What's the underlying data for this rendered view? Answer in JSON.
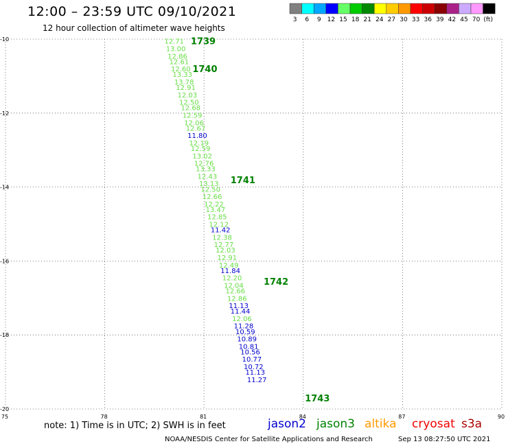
{
  "header": {
    "title": "12:00 – 23:59 UTC 09/10/2021",
    "subtitle": "12 hour collection of altimeter wave heights"
  },
  "legend": {
    "unit": "(ft)",
    "items": [
      {
        "label": "3",
        "color": "#808080"
      },
      {
        "label": "6",
        "color": "#00ffff"
      },
      {
        "label": "9",
        "color": "#00a8ff"
      },
      {
        "label": "12",
        "color": "#0000ff"
      },
      {
        "label": "15",
        "color": "#66ff66"
      },
      {
        "label": "18",
        "color": "#00cc00"
      },
      {
        "label": "21",
        "color": "#008800"
      },
      {
        "label": "24",
        "color": "#ffff00"
      },
      {
        "label": "27",
        "color": "#ffcc00"
      },
      {
        "label": "30",
        "color": "#ff9900"
      },
      {
        "label": "33",
        "color": "#ff0000"
      },
      {
        "label": "36",
        "color": "#cc0000"
      },
      {
        "label": "39",
        "color": "#880000"
      },
      {
        "label": "42",
        "color": "#aa2288"
      },
      {
        "label": "45",
        "color": "#ccaaff"
      },
      {
        "label": "70",
        "color": "#ff99ff"
      },
      {
        "label": "",
        "color": "#000000"
      }
    ]
  },
  "footer": {
    "note": "note: 1) Time is in UTC; 2) SWH is in feet",
    "credit": "NOAA/NESDIS Center for Satellite Applications and Research",
    "generated": "Sep 13 08:27:50 UTC 2021"
  },
  "satellites": [
    {
      "name": "jason2",
      "color": "#0000cc"
    },
    {
      "name": "jason3",
      "color": "#008000"
    },
    {
      "name": "altika",
      "color": "#ff9900"
    },
    {
      "name": "cryosat",
      "color": "#ee0000"
    },
    {
      "name": "s3a",
      "color": "#aa0000"
    }
  ],
  "chart_data": {
    "type": "scatter",
    "xlim": [
      75,
      90
    ],
    "ylim": [
      -20,
      -10
    ],
    "xticks": [
      75,
      78,
      81,
      84,
      87,
      90
    ],
    "yticks": [
      -10,
      -12,
      -14,
      -16,
      -18,
      -20
    ],
    "xtick_labels": [
      "75",
      "78",
      "81",
      "84",
      "87",
      "90"
    ],
    "ytick_labels": [
      "-10",
      "-12",
      "-14",
      "-16",
      "-18",
      "-20"
    ],
    "grid": true,
    "pass_labels": [
      {
        "label": "1739",
        "x": 80.6,
        "y": -10.05
      },
      {
        "label": "1740",
        "x": 80.65,
        "y": -10.8
      },
      {
        "label": "1741",
        "x": 81.8,
        "y": -13.8
      },
      {
        "label": "1742",
        "x": 82.8,
        "y": -16.55
      },
      {
        "label": "1743",
        "x": 84.05,
        "y": -19.7
      }
    ],
    "points": [
      {
        "x": 79.8,
        "y": -10.05,
        "value": "12.71",
        "color": "#66dd44"
      },
      {
        "x": 79.85,
        "y": -10.25,
        "value": "13.00",
        "color": "#66dd44"
      },
      {
        "x": 79.9,
        "y": -10.45,
        "value": "12.86",
        "color": "#66dd44"
      },
      {
        "x": 79.95,
        "y": -10.6,
        "value": "12.61",
        "color": "#66dd44"
      },
      {
        "x": 80.0,
        "y": -10.8,
        "value": "12.60",
        "color": "#66dd44"
      },
      {
        "x": 80.05,
        "y": -10.95,
        "value": "13.33",
        "color": "#66dd44"
      },
      {
        "x": 80.1,
        "y": -11.15,
        "value": "13.78",
        "color": "#66dd44"
      },
      {
        "x": 80.15,
        "y": -11.3,
        "value": "12.91",
        "color": "#66dd44"
      },
      {
        "x": 80.2,
        "y": -11.5,
        "value": "12.03",
        "color": "#66dd44"
      },
      {
        "x": 80.25,
        "y": -11.7,
        "value": "12.50",
        "color": "#66dd44"
      },
      {
        "x": 80.3,
        "y": -11.85,
        "value": "12.68",
        "color": "#66dd44"
      },
      {
        "x": 80.35,
        "y": -12.05,
        "value": "12.59",
        "color": "#66dd44"
      },
      {
        "x": 80.4,
        "y": -12.25,
        "value": "12.06",
        "color": "#66dd44"
      },
      {
        "x": 80.45,
        "y": -12.4,
        "value": "12.67",
        "color": "#66dd44"
      },
      {
        "x": 80.5,
        "y": -12.6,
        "value": "11.80",
        "color": "#0000cc"
      },
      {
        "x": 80.55,
        "y": -12.8,
        "value": "12.19",
        "color": "#66dd44"
      },
      {
        "x": 80.6,
        "y": -12.95,
        "value": "12.59",
        "color": "#66dd44"
      },
      {
        "x": 80.65,
        "y": -13.15,
        "value": "13.02",
        "color": "#66dd44"
      },
      {
        "x": 80.7,
        "y": -13.35,
        "value": "12.76",
        "color": "#66dd44"
      },
      {
        "x": 80.75,
        "y": -13.5,
        "value": "13.33",
        "color": "#66dd44"
      },
      {
        "x": 80.8,
        "y": -13.7,
        "value": "12.43",
        "color": "#66dd44"
      },
      {
        "x": 80.85,
        "y": -13.9,
        "value": "13.13",
        "color": "#66dd44"
      },
      {
        "x": 80.9,
        "y": -14.05,
        "value": "12.50",
        "color": "#66dd44"
      },
      {
        "x": 80.95,
        "y": -14.25,
        "value": "12.66",
        "color": "#66dd44"
      },
      {
        "x": 81.0,
        "y": -14.45,
        "value": "12.22",
        "color": "#66dd44"
      },
      {
        "x": 81.05,
        "y": -14.6,
        "value": "13.47",
        "color": "#66dd44"
      },
      {
        "x": 81.1,
        "y": -14.8,
        "value": "12.85",
        "color": "#66dd44"
      },
      {
        "x": 81.15,
        "y": -15.0,
        "value": "12.12",
        "color": "#66dd44"
      },
      {
        "x": 81.2,
        "y": -15.15,
        "value": "11.42",
        "color": "#0000cc"
      },
      {
        "x": 81.25,
        "y": -15.35,
        "value": "12.38",
        "color": "#66dd44"
      },
      {
        "x": 81.3,
        "y": -15.55,
        "value": "12.77",
        "color": "#66dd44"
      },
      {
        "x": 81.35,
        "y": -15.7,
        "value": "12.03",
        "color": "#66dd44"
      },
      {
        "x": 81.4,
        "y": -15.9,
        "value": "12.91",
        "color": "#66dd44"
      },
      {
        "x": 81.45,
        "y": -16.1,
        "value": "12.49",
        "color": "#66dd44"
      },
      {
        "x": 81.5,
        "y": -16.25,
        "value": "11.84",
        "color": "#0000cc"
      },
      {
        "x": 81.55,
        "y": -16.45,
        "value": "12.20",
        "color": "#66dd44"
      },
      {
        "x": 81.6,
        "y": -16.65,
        "value": "12.04",
        "color": "#66dd44"
      },
      {
        "x": 81.65,
        "y": -16.8,
        "value": "12.66",
        "color": "#66dd44"
      },
      {
        "x": 81.7,
        "y": -17.0,
        "value": "12.86",
        "color": "#66dd44"
      },
      {
        "x": 81.75,
        "y": -17.2,
        "value": "11.13",
        "color": "#0000cc"
      },
      {
        "x": 81.8,
        "y": -17.35,
        "value": "11.44",
        "color": "#0000cc"
      },
      {
        "x": 81.85,
        "y": -17.55,
        "value": "12.06",
        "color": "#66dd44"
      },
      {
        "x": 81.9,
        "y": -17.75,
        "value": "11.28",
        "color": "#0000cc"
      },
      {
        "x": 81.95,
        "y": -17.9,
        "value": "10.59",
        "color": "#0000cc"
      },
      {
        "x": 82.0,
        "y": -18.1,
        "value": "10.89",
        "color": "#0000cc"
      },
      {
        "x": 82.05,
        "y": -18.3,
        "value": "10.81",
        "color": "#0000cc"
      },
      {
        "x": 82.1,
        "y": -18.45,
        "value": "10.56",
        "color": "#0000cc"
      },
      {
        "x": 82.15,
        "y": -18.65,
        "value": "10.77",
        "color": "#0000cc"
      },
      {
        "x": 82.2,
        "y": -18.85,
        "value": "10.72",
        "color": "#0000cc"
      },
      {
        "x": 82.25,
        "y": -19.0,
        "value": "11.13",
        "color": "#0000cc"
      },
      {
        "x": 82.3,
        "y": -19.2,
        "value": "11.27",
        "color": "#0000cc"
      }
    ]
  }
}
